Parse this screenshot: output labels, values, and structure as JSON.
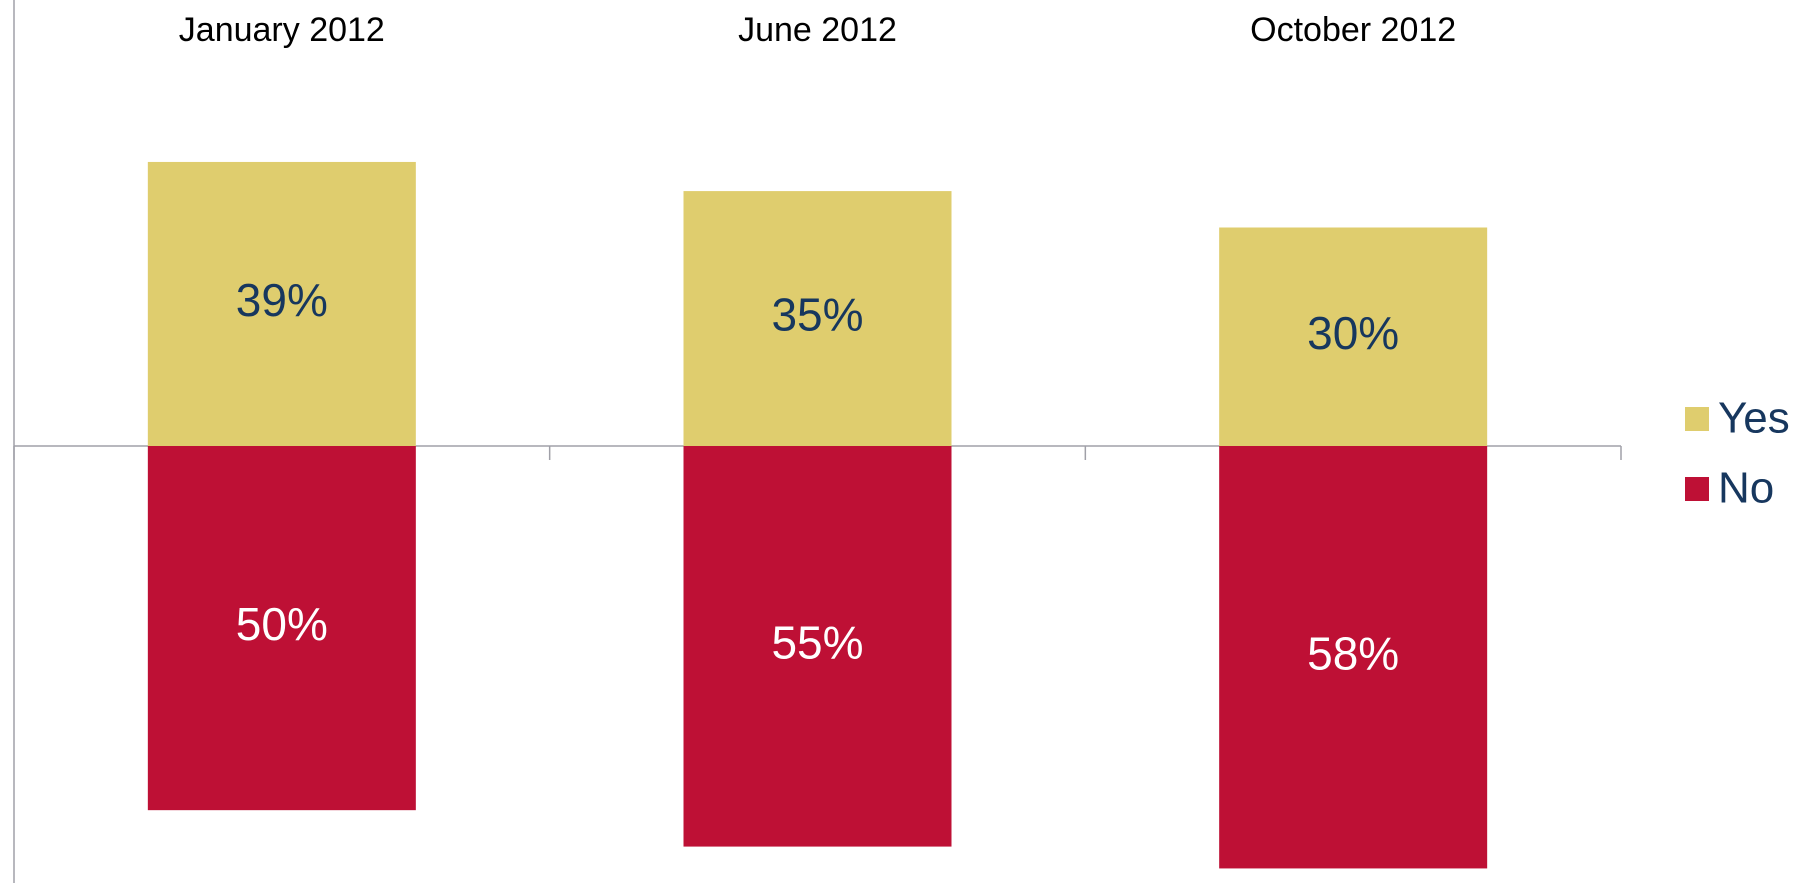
{
  "chart_data": {
    "type": "bar",
    "stacked": true,
    "categories": [
      "January 2012",
      "June 2012",
      "October 2012"
    ],
    "series": [
      {
        "name": "Yes",
        "color": "#dfcd6e",
        "values": [
          39,
          35,
          30
        ],
        "value_labels": [
          "39%",
          "35%",
          "30%"
        ],
        "label_color": "#17375e"
      },
      {
        "name": "No",
        "color": "#be1035",
        "values": [
          -50,
          -55,
          -58
        ],
        "value_labels": [
          "50%",
          "55%",
          "58%"
        ],
        "label_color": "#ffffff"
      }
    ],
    "ylim": [
      -60,
      60
    ],
    "legend": "right"
  }
}
